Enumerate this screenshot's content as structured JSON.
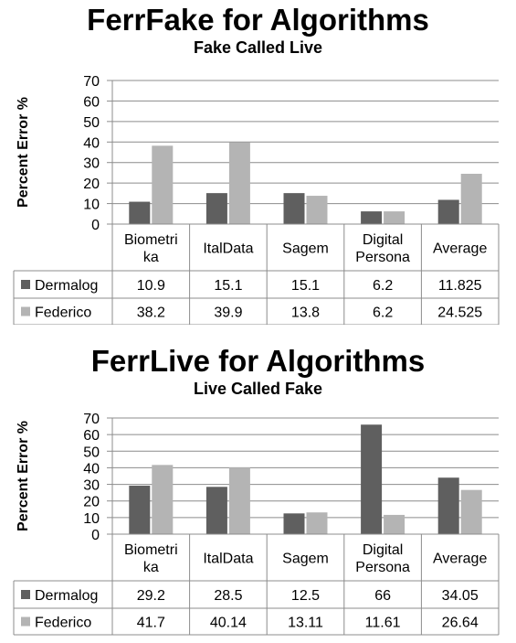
{
  "chart_data": [
    {
      "type": "bar",
      "title": "FerrFake for Algorithms",
      "subtitle": "Fake Called Live",
      "ylabel": "Percent Error %",
      "ylim": [
        0,
        70
      ],
      "yticks": [
        "0",
        "10",
        "20",
        "30",
        "40",
        "50",
        "60",
        "70"
      ],
      "grid": true,
      "categories": [
        [
          "Biometri",
          "ka"
        ],
        [
          "ItalData"
        ],
        [
          "Sagem"
        ],
        [
          "Digital",
          "Persona"
        ],
        [
          "Average"
        ]
      ],
      "series": [
        {
          "name": "Dermalog",
          "color": "#5f5f5f",
          "values": [
            10.9,
            15.1,
            15.1,
            6.2,
            11.825
          ],
          "labels": [
            "10.9",
            "15.1",
            "15.1",
            "6.2",
            "11.825"
          ]
        },
        {
          "name": "Federico",
          "color": "#b4b4b4",
          "values": [
            38.2,
            39.9,
            13.8,
            6.2,
            24.525
          ],
          "labels": [
            "38.2",
            "39.9",
            "13.8",
            "6.2",
            "24.525"
          ]
        }
      ]
    },
    {
      "type": "bar",
      "title": "FerrLive for Algorithms",
      "subtitle": "Live Called Fake",
      "ylabel": "Percent Error %",
      "ylim": [
        0,
        70
      ],
      "yticks": [
        "0",
        "10",
        "20",
        "30",
        "40",
        "50",
        "60",
        "70"
      ],
      "grid": true,
      "categories": [
        [
          "Biometri",
          "ka"
        ],
        [
          "ItalData"
        ],
        [
          "Sagem"
        ],
        [
          "Digital",
          "Persona"
        ],
        [
          "Average"
        ]
      ],
      "series": [
        {
          "name": "Dermalog",
          "color": "#5f5f5f",
          "values": [
            29.2,
            28.5,
            12.5,
            66,
            34.05
          ],
          "labels": [
            "29.2",
            "28.5",
            "12.5",
            "66",
            "34.05"
          ]
        },
        {
          "name": "Federico",
          "color": "#b4b4b4",
          "values": [
            41.7,
            40.14,
            13.11,
            11.61,
            26.64
          ],
          "labels": [
            "41.7",
            "40.14",
            "13.11",
            "11.61",
            "26.64"
          ]
        }
      ]
    }
  ]
}
